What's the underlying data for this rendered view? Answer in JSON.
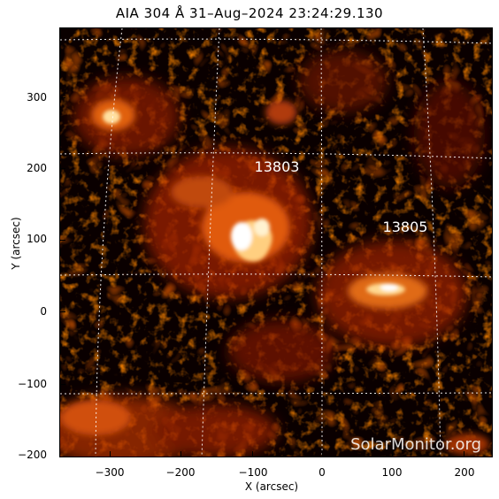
{
  "title": "AIA 304 Å 31–Aug–2024 23:24:29.130",
  "axes": {
    "xlabel": "X (arcsec)",
    "ylabel": "Y (arcsec)",
    "xticks": [
      "−300",
      "−200",
      "−100",
      "0",
      "100",
      "200"
    ],
    "yticks": [
      "300",
      "200",
      "100",
      "0",
      "−100",
      "−200"
    ]
  },
  "regions": [
    "13803",
    "13805"
  ],
  "watermark": "SolarMonitor.org",
  "colors": {
    "background": "#0a0000",
    "hot": "#ffffff",
    "bright": "#ffb040",
    "mid": "#c03000",
    "dark": "#400400"
  }
}
